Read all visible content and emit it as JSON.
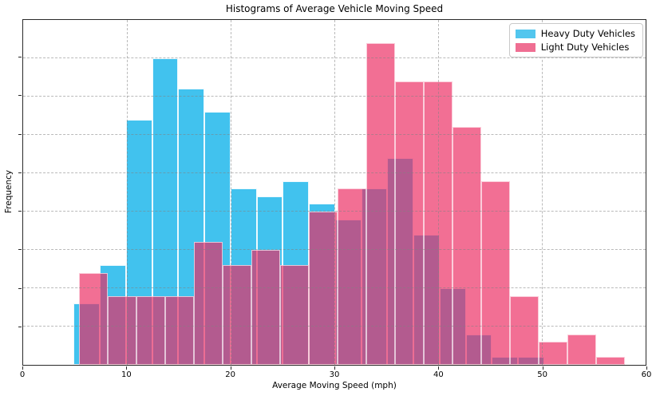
{
  "figure": {
    "title": "Histograms of Average Vehicle Moving Speed",
    "xlabel": "Average Moving Speed (mph)",
    "ylabel": "Frequency"
  },
  "legend": {
    "entries": [
      {
        "label": "Heavy Duty Vehicles",
        "color": "#52c6ee"
      },
      {
        "label": "Light Duty Vehicles",
        "color": "#ef6e92"
      }
    ],
    "position": "upper right"
  },
  "chart_data": {
    "type": "histogram",
    "subtype": "two overlaid translucent histograms",
    "title": "Histograms of Average Vehicle Moving Speed",
    "xlabel": "Average Moving Speed (mph)",
    "ylabel": "Frequency",
    "xlim": [
      0,
      60
    ],
    "x_ticks": [
      0,
      10,
      20,
      30,
      40,
      50,
      60
    ],
    "x_tick_labels": [
      "0",
      "10",
      "20",
      "30",
      "40",
      "50",
      "60"
    ],
    "ylim_counts": [
      0,
      45
    ],
    "y_gridline_spacing_counts": 5,
    "y_tick_labels_shown": false,
    "y_axis_note": "y axis has 8 unlabeled tick marks / gridlines; frequencies estimated at 5 counts per gridline",
    "grid": "dash-dot light gray, both axes, drawn above bars",
    "legend_position": "upper right",
    "colors": {
      "heavy_fill": "#41c2ee",
      "light_fill_rgba": "rgba(235,40,95,0.67)",
      "light_over_white": "#ef6e92",
      "overlap_observed": "#a9568e",
      "grid": "#bdbdbd",
      "spine": "#2a2a2a"
    },
    "series": [
      {
        "name": "Heavy Duty Vehicles",
        "bin_edges": [
          4.87,
          7.39,
          9.91,
          12.43,
          14.95,
          17.47,
          19.99,
          22.51,
          25.03,
          27.55,
          30.07,
          32.59,
          35.11,
          37.63,
          40.15,
          42.67,
          45.19,
          47.71,
          50.23
        ],
        "frequencies": [
          8,
          13,
          32,
          40,
          36,
          33,
          23,
          22,
          24,
          21,
          19,
          23,
          27,
          17,
          10,
          4,
          1,
          1
        ]
      },
      {
        "name": "Light Duty Vehicles",
        "bin_edges": [
          5.37,
          8.14,
          10.91,
          13.68,
          16.45,
          19.22,
          21.99,
          24.76,
          27.53,
          30.3,
          33.07,
          35.84,
          38.61,
          41.38,
          44.15,
          46.92,
          49.69,
          52.46,
          55.23,
          58.0
        ],
        "frequencies": [
          12,
          9,
          9,
          9,
          16,
          13,
          15,
          13,
          20,
          23,
          42,
          37,
          37,
          31,
          24,
          9,
          3,
          4,
          1
        ]
      }
    ]
  }
}
